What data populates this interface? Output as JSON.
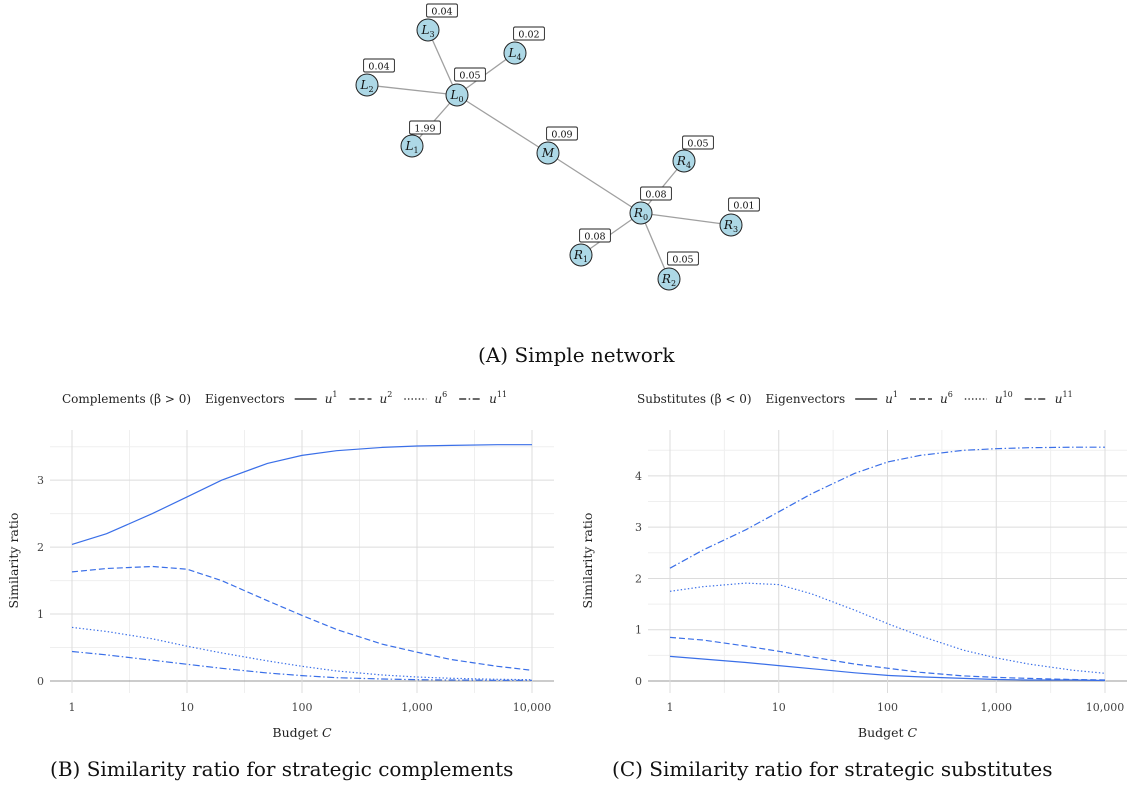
{
  "network": {
    "nodes": [
      {
        "id": "L0",
        "label": "L",
        "sub": "0",
        "weight": "0.05"
      },
      {
        "id": "L1",
        "label": "L",
        "sub": "1",
        "weight": "1.99"
      },
      {
        "id": "L2",
        "label": "L",
        "sub": "2",
        "weight": "0.04"
      },
      {
        "id": "L3",
        "label": "L",
        "sub": "3",
        "weight": "0.04"
      },
      {
        "id": "L4",
        "label": "L",
        "sub": "4",
        "weight": "0.02"
      },
      {
        "id": "M",
        "label": "M",
        "sub": "",
        "weight": "0.09"
      },
      {
        "id": "R0",
        "label": "R",
        "sub": "0",
        "weight": "0.08"
      },
      {
        "id": "R1",
        "label": "R",
        "sub": "1",
        "weight": "0.08"
      },
      {
        "id": "R2",
        "label": "R",
        "sub": "2",
        "weight": "0.05"
      },
      {
        "id": "R3",
        "label": "R",
        "sub": "3",
        "weight": "0.01"
      },
      {
        "id": "R4",
        "label": "R",
        "sub": "4",
        "weight": "0.05"
      }
    ],
    "edges": [
      [
        "L0",
        "L1"
      ],
      [
        "L0",
        "L2"
      ],
      [
        "L0",
        "L3"
      ],
      [
        "L0",
        "L4"
      ],
      [
        "L0",
        "M"
      ],
      [
        "M",
        "R0"
      ],
      [
        "R0",
        "R1"
      ],
      [
        "R0",
        "R2"
      ],
      [
        "R0",
        "R3"
      ],
      [
        "R0",
        "R4"
      ]
    ],
    "node_color": "#add8e6",
    "edge_color": "#a0a0a0"
  },
  "captions": {
    "a_letter": "A",
    "a_text": "Simple network",
    "b_letter": "B",
    "b_text": "Similarity ratio for strategic complements",
    "c_letter": "C",
    "c_text": "Similarity ratio for strategic substitutes"
  },
  "chart_data": [
    {
      "type": "line",
      "legend_group": "Complements (β > 0)",
      "legend_title": "Eigenvectors",
      "legend_placement": "top",
      "xlabel": "Budget C",
      "ylabel": "Similarity ratio",
      "xscale": "log",
      "xlim": [
        1,
        10000
      ],
      "ylim": [
        0,
        3.6
      ],
      "xticks": [
        1,
        10,
        100,
        1000,
        10000
      ],
      "xtick_labels": [
        "1",
        "10",
        "100",
        "1,000",
        "10,000"
      ],
      "yticks": [
        0,
        1,
        2,
        3
      ],
      "grid": true,
      "line_color": "#3a6fe8",
      "series": [
        {
          "name": "u1",
          "base": "u",
          "sup": "1",
          "dash": "solid",
          "x": [
            1,
            2,
            5,
            10,
            20,
            50,
            100,
            200,
            500,
            1000,
            2000,
            5000,
            10000
          ],
          "y": [
            2.04,
            2.2,
            2.5,
            2.75,
            3.0,
            3.25,
            3.37,
            3.44,
            3.49,
            3.51,
            3.52,
            3.53,
            3.53
          ]
        },
        {
          "name": "u2",
          "base": "u",
          "sup": "2",
          "dash": "dashed",
          "x": [
            1,
            2,
            5,
            10,
            20,
            50,
            100,
            200,
            500,
            1000,
            2000,
            5000,
            10000
          ],
          "y": [
            1.63,
            1.68,
            1.71,
            1.67,
            1.5,
            1.2,
            0.98,
            0.77,
            0.55,
            0.43,
            0.32,
            0.22,
            0.16
          ]
        },
        {
          "name": "u6",
          "base": "u",
          "sup": "6",
          "dash": "dotted",
          "x": [
            1,
            2,
            5,
            10,
            20,
            50,
            100,
            200,
            500,
            1000,
            2000,
            5000,
            10000
          ],
          "y": [
            0.8,
            0.74,
            0.63,
            0.52,
            0.42,
            0.3,
            0.22,
            0.15,
            0.09,
            0.06,
            0.04,
            0.025,
            0.02
          ]
        },
        {
          "name": "u11",
          "base": "u",
          "sup": "11",
          "dash": "dashdot",
          "x": [
            1,
            2,
            5,
            10,
            20,
            50,
            100,
            200,
            500,
            1000,
            2000,
            5000,
            10000
          ],
          "y": [
            0.44,
            0.39,
            0.31,
            0.25,
            0.19,
            0.12,
            0.08,
            0.05,
            0.03,
            0.02,
            0.015,
            0.01,
            0.01
          ]
        }
      ]
    },
    {
      "type": "line",
      "legend_group": "Substitutes (β < 0)",
      "legend_title": "Eigenvectors",
      "legend_placement": "top",
      "xlabel": "Budget C",
      "ylabel": "Similarity ratio",
      "xscale": "log",
      "xlim": [
        1,
        10000
      ],
      "ylim": [
        0,
        4.7
      ],
      "xticks": [
        1,
        10,
        100,
        1000,
        10000
      ],
      "xtick_labels": [
        "1",
        "10",
        "100",
        "1,000",
        "10,000"
      ],
      "yticks": [
        0,
        1,
        2,
        3,
        4
      ],
      "grid": true,
      "line_color": "#3a6fe8",
      "series": [
        {
          "name": "u1",
          "base": "u",
          "sup": "1",
          "dash": "solid",
          "x": [
            1,
            2,
            5,
            10,
            20,
            50,
            100,
            200,
            500,
            1000,
            2000,
            5000,
            10000
          ],
          "y": [
            0.48,
            0.43,
            0.36,
            0.3,
            0.24,
            0.16,
            0.11,
            0.08,
            0.05,
            0.03,
            0.02,
            0.02,
            0.01
          ]
        },
        {
          "name": "u6",
          "base": "u",
          "sup": "6",
          "dash": "dashed",
          "x": [
            1,
            2,
            5,
            10,
            20,
            50,
            100,
            200,
            500,
            1000,
            2000,
            5000,
            10000
          ],
          "y": [
            0.85,
            0.8,
            0.68,
            0.58,
            0.47,
            0.33,
            0.25,
            0.17,
            0.1,
            0.07,
            0.05,
            0.03,
            0.02
          ]
        },
        {
          "name": "u10",
          "base": "u",
          "sup": "10",
          "dash": "dotted",
          "x": [
            1,
            2,
            5,
            10,
            20,
            50,
            100,
            200,
            500,
            1000,
            2000,
            5000,
            10000
          ],
          "y": [
            1.75,
            1.84,
            1.91,
            1.88,
            1.7,
            1.38,
            1.12,
            0.88,
            0.6,
            0.45,
            0.33,
            0.21,
            0.15
          ]
        },
        {
          "name": "u11",
          "base": "u",
          "sup": "11",
          "dash": "dashdot",
          "x": [
            1,
            2,
            5,
            10,
            20,
            50,
            100,
            200,
            500,
            1000,
            2000,
            5000,
            10000
          ],
          "y": [
            2.2,
            2.55,
            2.95,
            3.3,
            3.65,
            4.05,
            4.27,
            4.4,
            4.5,
            4.53,
            4.55,
            4.56,
            4.56
          ]
        }
      ]
    }
  ]
}
